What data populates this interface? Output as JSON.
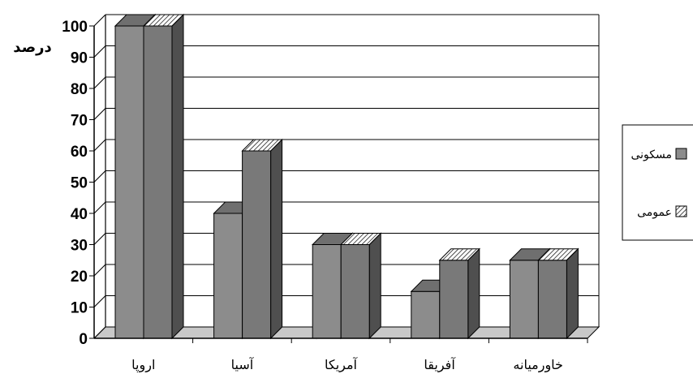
{
  "chart_data": {
    "type": "bar",
    "ylabel": "درصد",
    "ylim": [
      0,
      100
    ],
    "yticks": [
      0,
      10,
      20,
      30,
      40,
      50,
      60,
      70,
      80,
      90,
      100
    ],
    "categories": [
      "اروپا",
      "آسیا",
      "آمریکا",
      "آفریقا",
      "خاورمیانه"
    ],
    "series": [
      {
        "name": "مسکونی",
        "values": [
          100,
          40,
          30,
          15,
          25
        ]
      },
      {
        "name": "عمومی",
        "values": [
          100,
          60,
          30,
          25,
          25
        ]
      }
    ],
    "grid": true,
    "legend": "right"
  }
}
